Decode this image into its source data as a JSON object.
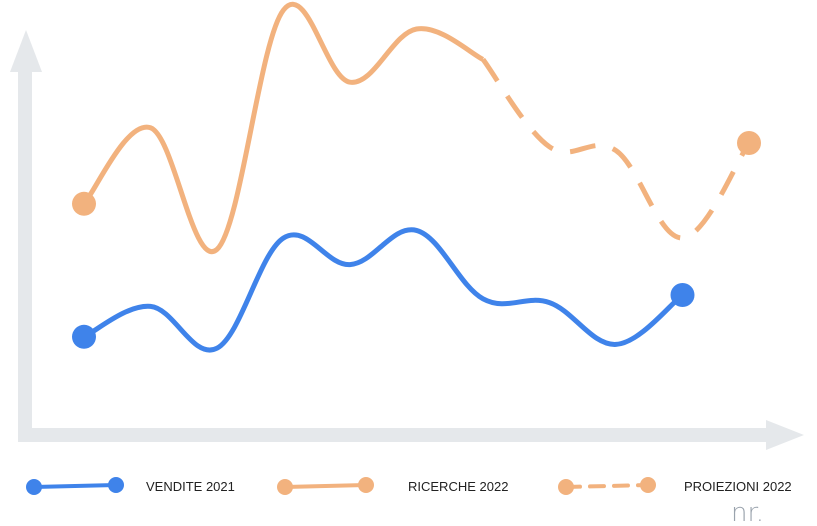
{
  "chart_data": {
    "type": "line",
    "title": "",
    "xlabel": "",
    "ylabel": "",
    "unit_label": "nr.",
    "grid": false,
    "legend_position": "bottom",
    "x": [
      1,
      2,
      3,
      4,
      5,
      6,
      7,
      8,
      9,
      10,
      11
    ],
    "ylim": [
      0,
      100
    ],
    "series": [
      {
        "name": "VENDITE 2021",
        "color": "#3f83ea",
        "style": "solid",
        "x": [
          1,
          2,
          3,
          4,
          5,
          6,
          7,
          8,
          9,
          10,
          11
        ],
        "values": [
          14,
          22,
          11,
          40,
          33,
          42,
          24,
          23,
          12,
          25,
          null
        ]
      },
      {
        "name": "RICERCHE 2022",
        "color": "#f2b27e",
        "style": "solid",
        "x": [
          1,
          2,
          3,
          4,
          5,
          6,
          7
        ],
        "values": [
          49,
          69,
          37,
          100,
          81,
          95,
          87
        ]
      },
      {
        "name": "PROIEZIONI 2022",
        "color": "#f2b27e",
        "style": "dashed",
        "x": [
          7,
          8,
          9,
          10,
          11
        ],
        "values": [
          87,
          64,
          63,
          40,
          65
        ]
      }
    ]
  }
}
